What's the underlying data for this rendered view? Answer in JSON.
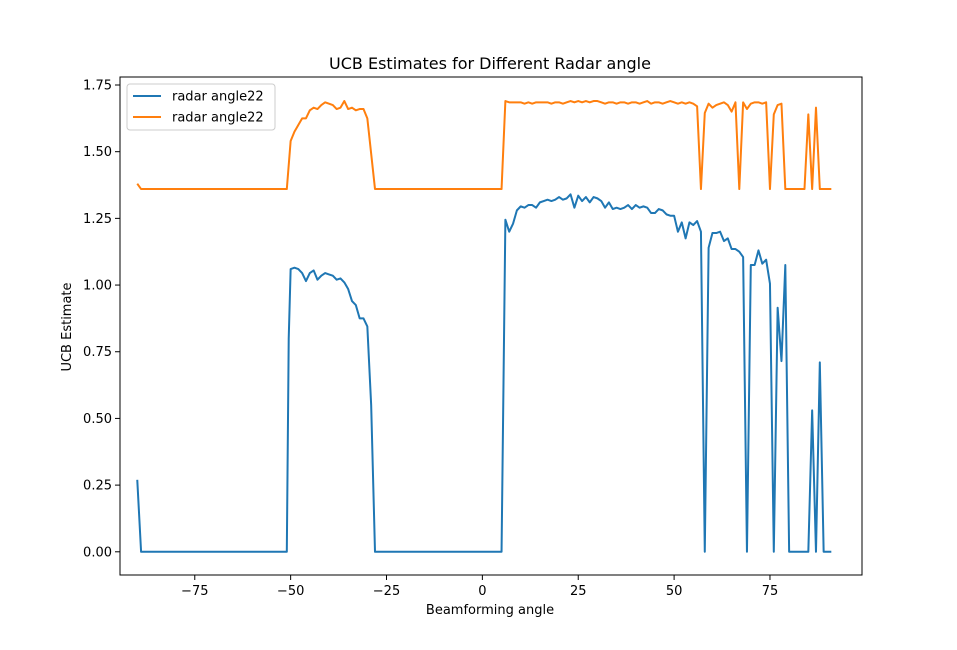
{
  "chart_data": {
    "type": "line",
    "title": "UCB Estimates for Different Radar angle",
    "xlabel": "Beamforming angle",
    "ylabel": "UCB Estimate",
    "xlim": [
      -94.5,
      99
    ],
    "ylim": [
      -0.087,
      1.78
    ],
    "xticks": [
      -75,
      -50,
      -25,
      0,
      25,
      50,
      75
    ],
    "xtick_labels": [
      "−75",
      "−50",
      "−25",
      "0",
      "25",
      "50",
      "75"
    ],
    "yticks": [
      0.0,
      0.25,
      0.5,
      0.75,
      1.0,
      1.25,
      1.5,
      1.75
    ],
    "ytick_labels": [
      "0.00",
      "0.25",
      "0.50",
      "0.75",
      "1.00",
      "1.25",
      "1.50",
      "1.75"
    ],
    "grid": false,
    "legend_position": "top-left",
    "series": [
      {
        "name": "radar angle22",
        "color": "#1f77b4",
        "points": [
          [
            -90,
            0.27
          ],
          [
            -89,
            0.0
          ],
          [
            -51,
            0.0
          ],
          [
            -50.5,
            0.8
          ],
          [
            -50,
            1.06
          ],
          [
            -49,
            1.065
          ],
          [
            -48,
            1.06
          ],
          [
            -47,
            1.045
          ],
          [
            -46,
            1.015
          ],
          [
            -45,
            1.045
          ],
          [
            -44,
            1.055
          ],
          [
            -43,
            1.02
          ],
          [
            -42,
            1.035
          ],
          [
            -41,
            1.045
          ],
          [
            -40,
            1.04
          ],
          [
            -39,
            1.035
          ],
          [
            -38,
            1.02
          ],
          [
            -37,
            1.025
          ],
          [
            -36,
            1.01
          ],
          [
            -35,
            0.985
          ],
          [
            -34,
            0.94
          ],
          [
            -33,
            0.925
          ],
          [
            -32,
            0.875
          ],
          [
            -31,
            0.875
          ],
          [
            -30,
            0.845
          ],
          [
            -29,
            0.55
          ],
          [
            -28,
            0.0
          ],
          [
            5,
            0.0
          ],
          [
            6,
            1.245
          ],
          [
            7,
            1.2
          ],
          [
            8,
            1.23
          ],
          [
            9,
            1.28
          ],
          [
            10,
            1.295
          ],
          [
            11,
            1.29
          ],
          [
            12,
            1.3
          ],
          [
            13,
            1.3
          ],
          [
            14,
            1.29
          ],
          [
            15,
            1.31
          ],
          [
            16,
            1.315
          ],
          [
            17,
            1.32
          ],
          [
            18,
            1.315
          ],
          [
            19,
            1.32
          ],
          [
            20,
            1.33
          ],
          [
            21,
            1.32
          ],
          [
            22,
            1.325
          ],
          [
            23,
            1.34
          ],
          [
            24,
            1.29
          ],
          [
            25,
            1.335
          ],
          [
            26,
            1.315
          ],
          [
            27,
            1.33
          ],
          [
            28,
            1.31
          ],
          [
            29,
            1.33
          ],
          [
            30,
            1.325
          ],
          [
            31,
            1.315
          ],
          [
            32,
            1.29
          ],
          [
            33,
            1.31
          ],
          [
            34,
            1.285
          ],
          [
            35,
            1.29
          ],
          [
            36,
            1.285
          ],
          [
            37,
            1.29
          ],
          [
            38,
            1.3
          ],
          [
            39,
            1.285
          ],
          [
            40,
            1.3
          ],
          [
            41,
            1.29
          ],
          [
            42,
            1.295
          ],
          [
            43,
            1.29
          ],
          [
            44,
            1.27
          ],
          [
            45,
            1.27
          ],
          [
            46,
            1.285
          ],
          [
            47,
            1.28
          ],
          [
            48,
            1.265
          ],
          [
            49,
            1.26
          ],
          [
            50,
            1.26
          ],
          [
            51,
            1.2
          ],
          [
            52,
            1.235
          ],
          [
            53,
            1.175
          ],
          [
            54,
            1.235
          ],
          [
            55,
            1.225
          ],
          [
            56,
            1.24
          ],
          [
            57,
            1.2
          ],
          [
            58,
            0.0
          ],
          [
            59,
            1.14
          ],
          [
            60,
            1.195
          ],
          [
            61,
            1.195
          ],
          [
            62,
            1.2
          ],
          [
            63,
            1.165
          ],
          [
            64,
            1.175
          ],
          [
            65,
            1.135
          ],
          [
            66,
            1.135
          ],
          [
            67,
            1.125
          ],
          [
            68,
            1.105
          ],
          [
            69,
            0.0
          ],
          [
            70,
            1.075
          ],
          [
            71,
            1.075
          ],
          [
            72,
            1.13
          ],
          [
            73,
            1.08
          ],
          [
            74,
            1.095
          ],
          [
            75,
            1.005
          ],
          [
            76,
            0.0
          ],
          [
            77,
            0.915
          ],
          [
            78,
            0.715
          ],
          [
            79,
            1.075
          ],
          [
            80,
            0.0
          ],
          [
            85,
            0.0
          ],
          [
            86,
            0.53
          ],
          [
            87,
            0.0
          ],
          [
            88,
            0.71
          ],
          [
            89,
            0.0
          ],
          [
            91,
            0.0
          ]
        ]
      },
      {
        "name": "radar angle22",
        "color": "#ff7f0e",
        "points": [
          [
            -90,
            1.38
          ],
          [
            -89,
            1.36
          ],
          [
            -51,
            1.36
          ],
          [
            -50,
            1.54
          ],
          [
            -49,
            1.575
          ],
          [
            -48,
            1.6
          ],
          [
            -47,
            1.625
          ],
          [
            -46,
            1.625
          ],
          [
            -45,
            1.655
          ],
          [
            -44,
            1.665
          ],
          [
            -43,
            1.66
          ],
          [
            -42,
            1.675
          ],
          [
            -41,
            1.685
          ],
          [
            -40,
            1.68
          ],
          [
            -39,
            1.675
          ],
          [
            -38,
            1.66
          ],
          [
            -37,
            1.665
          ],
          [
            -36,
            1.69
          ],
          [
            -35,
            1.66
          ],
          [
            -34,
            1.665
          ],
          [
            -33,
            1.655
          ],
          [
            -32,
            1.66
          ],
          [
            -31,
            1.66
          ],
          [
            -30,
            1.625
          ],
          [
            -28,
            1.36
          ],
          [
            5,
            1.36
          ],
          [
            6,
            1.69
          ],
          [
            7,
            1.685
          ],
          [
            8,
            1.685
          ],
          [
            9,
            1.685
          ],
          [
            10,
            1.685
          ],
          [
            11,
            1.68
          ],
          [
            12,
            1.685
          ],
          [
            13,
            1.68
          ],
          [
            14,
            1.685
          ],
          [
            15,
            1.685
          ],
          [
            16,
            1.685
          ],
          [
            17,
            1.685
          ],
          [
            18,
            1.68
          ],
          [
            19,
            1.685
          ],
          [
            20,
            1.685
          ],
          [
            21,
            1.68
          ],
          [
            22,
            1.685
          ],
          [
            23,
            1.69
          ],
          [
            24,
            1.685
          ],
          [
            25,
            1.69
          ],
          [
            26,
            1.685
          ],
          [
            27,
            1.69
          ],
          [
            28,
            1.685
          ],
          [
            29,
            1.69
          ],
          [
            30,
            1.69
          ],
          [
            31,
            1.685
          ],
          [
            32,
            1.68
          ],
          [
            33,
            1.685
          ],
          [
            34,
            1.685
          ],
          [
            35,
            1.68
          ],
          [
            36,
            1.685
          ],
          [
            37,
            1.685
          ],
          [
            38,
            1.68
          ],
          [
            39,
            1.685
          ],
          [
            40,
            1.685
          ],
          [
            41,
            1.68
          ],
          [
            42,
            1.685
          ],
          [
            43,
            1.69
          ],
          [
            44,
            1.68
          ],
          [
            45,
            1.685
          ],
          [
            46,
            1.685
          ],
          [
            47,
            1.68
          ],
          [
            48,
            1.685
          ],
          [
            49,
            1.69
          ],
          [
            50,
            1.685
          ],
          [
            51,
            1.68
          ],
          [
            52,
            1.685
          ],
          [
            53,
            1.68
          ],
          [
            54,
            1.685
          ],
          [
            55,
            1.68
          ],
          [
            56,
            1.67
          ],
          [
            57,
            1.36
          ],
          [
            58,
            1.645
          ],
          [
            59,
            1.68
          ],
          [
            60,
            1.665
          ],
          [
            61,
            1.675
          ],
          [
            62,
            1.68
          ],
          [
            63,
            1.685
          ],
          [
            64,
            1.675
          ],
          [
            65,
            1.65
          ],
          [
            66,
            1.685
          ],
          [
            67,
            1.36
          ],
          [
            68,
            1.685
          ],
          [
            69,
            1.66
          ],
          [
            70,
            1.68
          ],
          [
            71,
            1.685
          ],
          [
            72,
            1.685
          ],
          [
            73,
            1.68
          ],
          [
            74,
            1.685
          ],
          [
            75,
            1.36
          ],
          [
            76,
            1.64
          ],
          [
            77,
            1.675
          ],
          [
            78,
            1.68
          ],
          [
            79,
            1.36
          ],
          [
            84,
            1.36
          ],
          [
            85,
            1.64
          ],
          [
            86,
            1.36
          ],
          [
            87,
            1.665
          ],
          [
            88,
            1.36
          ],
          [
            91,
            1.36
          ]
        ]
      }
    ]
  }
}
